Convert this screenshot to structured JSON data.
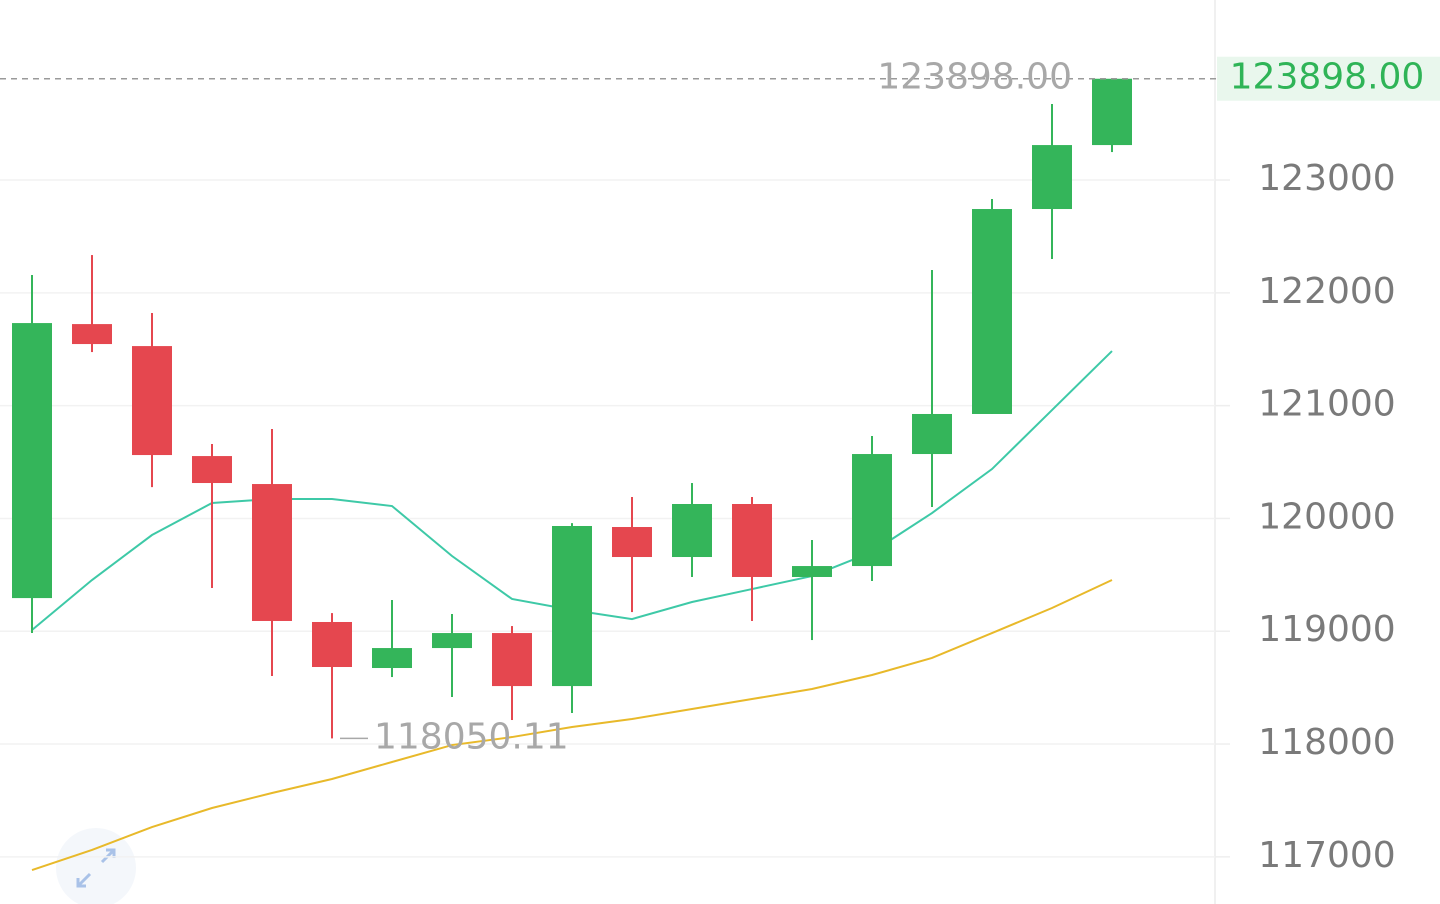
{
  "chart_data": {
    "type": "candlestick",
    "open": [
      119294,
      121723,
      121528,
      120553,
      120305,
      119082,
      118674,
      118851,
      118984,
      118514,
      119924,
      119658,
      120128,
      119481,
      119578,
      120571,
      120926,
      122743,
      123310
    ],
    "high": [
      122158,
      122335,
      121821,
      120660,
      120793,
      119161,
      119277,
      119153,
      119046,
      119959,
      120190,
      120314,
      120190,
      119809,
      120731,
      122202,
      122832,
      123674,
      123898
    ],
    "low": [
      118984,
      121475,
      120278,
      119383,
      118603,
      118050.11,
      118594,
      118417,
      118213,
      118275,
      119170,
      119481,
      119091,
      118922,
      119445,
      120101,
      120926,
      122300,
      123248
    ],
    "close": [
      121732,
      121546,
      120562,
      120314,
      119091,
      118683,
      118851,
      118984,
      118514,
      119933,
      119658,
      120128,
      119481,
      119578,
      120571,
      120926,
      122743,
      123310,
      123898
    ],
    "up_color": "#34b55a",
    "down_color": "#e5474f",
    "ma_lines": [
      {
        "color": "#3ec9a7",
        "values": [
          119011,
          119454,
          119853,
          120137,
          120172,
          120172,
          120110,
          119667,
          119286,
          119188,
          119108,
          119259,
          119374,
          119489,
          119702,
          120048,
          120438,
          120961,
          121484
        ]
      },
      {
        "color": "#e8b92a",
        "values": [
          116883,
          117061,
          117264,
          117433,
          117566,
          117690,
          117841,
          117991,
          118062,
          118151,
          118222,
          118311,
          118399,
          118488,
          118612,
          118763,
          118984,
          119206,
          119454
        ]
      }
    ],
    "ylim": [
      116582,
      124596
    ],
    "yticks": [
      117000,
      118000,
      119000,
      120000,
      121000,
      122000,
      123000
    ],
    "grid": true,
    "last_price": {
      "value": 123898,
      "label": "123898.00"
    },
    "max_label": {
      "value": 123898,
      "label": "123898.00"
    },
    "min_label": {
      "value": 118050.11,
      "label": "118050.11"
    }
  }
}
